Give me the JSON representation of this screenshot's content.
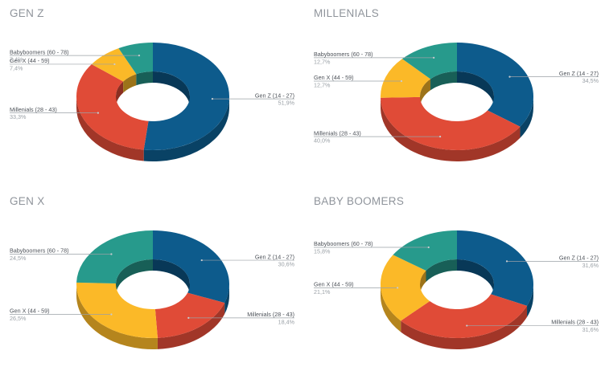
{
  "colors": {
    "Gen Z (14 - 27)": "#0d5b8c",
    "Millenials (28 - 43)": "#e04b37",
    "Gen X (44 - 59)": "#fbb928",
    "Babyboomers (60 - 78)": "#279a8c"
  },
  "chart_data": [
    {
      "type": "pie",
      "title": "GEN Z",
      "labels": [
        "Gen Z (14 - 27)",
        "Millenials (28 - 43)",
        "Gen X (44 - 59)",
        "Babyboomers (60 - 78)"
      ],
      "values": [
        51.9,
        33.3,
        7.4,
        7.4
      ],
      "value_labels": [
        "51,9%",
        "33,3%",
        "7,4%",
        "7,4%"
      ]
    },
    {
      "type": "pie",
      "title": "MILLENIALS",
      "labels": [
        "Gen Z (14 - 27)",
        "Millenials (28 - 43)",
        "Gen X (44 - 59)",
        "Babyboomers (60 - 78)"
      ],
      "values": [
        34.5,
        40.0,
        12.7,
        12.7
      ],
      "value_labels": [
        "34,5%",
        "40,0%",
        "12,7%",
        "12,7%"
      ]
    },
    {
      "type": "pie",
      "title": "GEN X",
      "labels": [
        "Gen Z (14 - 27)",
        "Millenials (28 - 43)",
        "Gen X (44 - 59)",
        "Babyboomers (60 - 78)"
      ],
      "values": [
        30.6,
        18.4,
        26.5,
        24.5
      ],
      "value_labels": [
        "30,6%",
        "18,4%",
        "26,5%",
        "24,5%"
      ]
    },
    {
      "type": "pie",
      "title": "BABY BOOMERS",
      "labels": [
        "Gen Z (14 - 27)",
        "Millenials (28 - 43)",
        "Gen X (44 - 59)",
        "Babyboomers (60 - 78)"
      ],
      "values": [
        31.6,
        31.6,
        21.1,
        15.8
      ],
      "value_labels": [
        "31,6%",
        "31,6%",
        "21,1%",
        "15,8%"
      ]
    }
  ]
}
